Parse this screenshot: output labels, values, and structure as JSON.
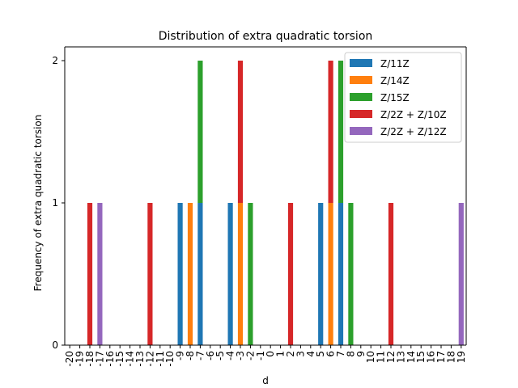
{
  "chart_data": {
    "type": "bar",
    "stacked": true,
    "title": "Distribution of extra quadratic torsion",
    "xlabel": "d",
    "ylabel": "Frequency of extra quadratic torsion",
    "categories": [
      "-20",
      "-19",
      "-18",
      "-17",
      "-16",
      "-15",
      "-14",
      "-13",
      "-12",
      "-11",
      "-10",
      "-9",
      "-8",
      "-7",
      "-6",
      "-5",
      "-4",
      "-3",
      "-2",
      "-1",
      "0",
      "1",
      "2",
      "3",
      "4",
      "5",
      "6",
      "7",
      "8",
      "9",
      "10",
      "11",
      "12",
      "13",
      "14",
      "15",
      "16",
      "17",
      "18",
      "19"
    ],
    "yticks": [
      "0",
      "1",
      "2"
    ],
    "ylim": [
      0,
      2
    ],
    "legend_position": "upper right",
    "grid": false,
    "series": [
      {
        "name": "Z/11Z",
        "color": "#1f77b4",
        "values": [
          0,
          0,
          0,
          0,
          0,
          0,
          0,
          0,
          0,
          0,
          0,
          1,
          0,
          1,
          0,
          0,
          1,
          0,
          0,
          0,
          0,
          0,
          0,
          0,
          0,
          1,
          0,
          1,
          0,
          0,
          0,
          0,
          0,
          0,
          0,
          0,
          0,
          0,
          0,
          0
        ]
      },
      {
        "name": "Z/14Z",
        "color": "#ff7f0e",
        "values": [
          0,
          0,
          0,
          0,
          0,
          0,
          0,
          0,
          0,
          0,
          0,
          0,
          1,
          0,
          0,
          0,
          0,
          1,
          0,
          0,
          0,
          0,
          0,
          0,
          0,
          0,
          1,
          0,
          0,
          0,
          0,
          0,
          0,
          0,
          0,
          0,
          0,
          0,
          0,
          0
        ]
      },
      {
        "name": "Z/15Z",
        "color": "#2ca02c",
        "values": [
          0,
          0,
          0,
          0,
          0,
          0,
          0,
          0,
          0,
          0,
          0,
          0,
          0,
          1,
          0,
          0,
          0,
          0,
          1,
          0,
          0,
          0,
          0,
          0,
          0,
          0,
          0,
          1,
          1,
          0,
          0,
          0,
          0,
          0,
          0,
          0,
          0,
          0,
          0,
          0
        ]
      },
      {
        "name": "Z/2Z + Z/10Z",
        "color": "#d62728",
        "values": [
          0,
          0,
          1,
          0,
          0,
          0,
          0,
          0,
          1,
          0,
          0,
          0,
          0,
          0,
          0,
          0,
          0,
          1,
          0,
          0,
          0,
          0,
          1,
          0,
          0,
          0,
          1,
          0,
          0,
          0,
          0,
          0,
          1,
          0,
          0,
          0,
          0,
          0,
          0,
          0
        ]
      },
      {
        "name": "Z/2Z + Z/12Z",
        "color": "#9467bd",
        "values": [
          0,
          0,
          0,
          1,
          0,
          0,
          0,
          0,
          0,
          0,
          0,
          0,
          0,
          0,
          0,
          0,
          0,
          0,
          0,
          0,
          0,
          0,
          0,
          0,
          0,
          0,
          0,
          0,
          0,
          0,
          0,
          0,
          0,
          0,
          0,
          0,
          0,
          0,
          0,
          1
        ]
      }
    ]
  }
}
